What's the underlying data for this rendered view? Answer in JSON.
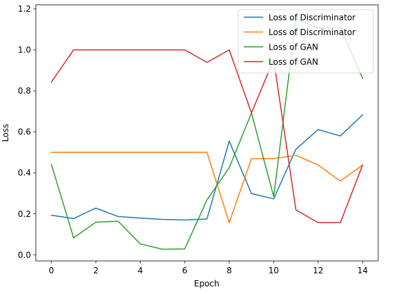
{
  "chart_data": {
    "type": "line",
    "title": "",
    "xlabel": "Epoch",
    "ylabel": "Loss",
    "xlim": [
      -0.7,
      14.7
    ],
    "ylim": [
      -0.03,
      1.22
    ],
    "x_ticks": [
      0,
      2,
      4,
      6,
      8,
      10,
      12,
      14
    ],
    "y_ticks": [
      0.0,
      0.2,
      0.4,
      0.6,
      0.8,
      1.0,
      1.2
    ],
    "x_tick_labels": [
      "0",
      "2",
      "4",
      "6",
      "8",
      "10",
      "12",
      "14"
    ],
    "y_tick_labels": [
      "0.0",
      "0.2",
      "0.4",
      "0.6",
      "0.8",
      "1.0",
      "1.2"
    ],
    "grid": false,
    "legend_position": "top-right",
    "x": [
      0,
      1,
      2,
      3,
      4,
      5,
      6,
      7,
      8,
      9,
      10,
      11,
      12,
      13,
      14
    ],
    "series": [
      {
        "name": "Loss of Discriminator",
        "color": "#1f77b4",
        "values": [
          0.193,
          0.177,
          0.228,
          0.187,
          0.179,
          0.173,
          0.17,
          0.175,
          0.555,
          0.299,
          0.273,
          0.515,
          0.611,
          0.58,
          0.683
        ]
      },
      {
        "name": "Loss of Discriminator",
        "color": "#ff7f0e",
        "values": [
          0.5,
          0.5,
          0.5,
          0.5,
          0.5,
          0.5,
          0.5,
          0.5,
          0.157,
          0.469,
          0.469,
          0.486,
          0.438,
          0.36,
          0.438
        ]
      },
      {
        "name": "Loss of GAN",
        "color": "#2ca02c",
        "values": [
          0.441,
          0.083,
          0.159,
          0.164,
          0.053,
          0.027,
          0.029,
          0.268,
          0.425,
          0.692,
          0.284,
          1.15,
          1.108,
          1.11,
          0.861
        ]
      },
      {
        "name": "Loss of GAN",
        "color": "#d62728",
        "values": [
          0.843,
          1.0,
          1.0,
          1.0,
          1.0,
          1.0,
          1.0,
          0.939,
          1.0,
          0.692,
          0.953,
          0.219,
          0.157,
          0.157,
          0.438
        ]
      }
    ]
  }
}
